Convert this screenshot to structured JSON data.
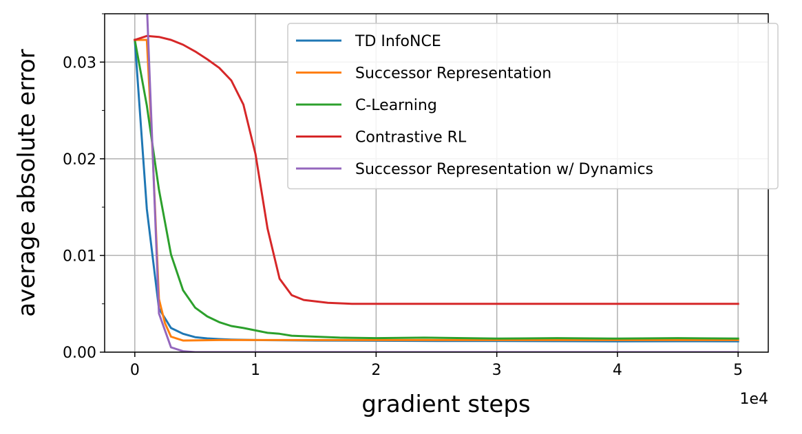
{
  "chart_data": {
    "type": "line",
    "xlabel": "gradient steps",
    "ylabel": "average absolute error",
    "x_offset_label": "1e4",
    "xlim": [
      -0.25,
      5.25
    ],
    "ylim": [
      0,
      0.035
    ],
    "xticks": [
      0,
      1,
      2,
      3,
      4,
      5
    ],
    "xtick_labels": [
      "0",
      "1",
      "2",
      "3",
      "4",
      "5"
    ],
    "yticks": [
      0,
      0.01,
      0.02,
      0.03
    ],
    "ytick_labels": [
      "0.00",
      "0.01",
      "0.02",
      "0.03"
    ],
    "grid": true,
    "legend_position": "top-right",
    "series": [
      {
        "name": "TD InfoNCE",
        "color": "#1f77b4",
        "x": [
          0,
          0.1,
          0.2,
          0.3,
          0.4,
          0.5,
          0.6,
          0.7,
          0.8,
          1.0,
          1.5,
          2.0,
          2.5,
          3.0,
          3.5,
          4.0,
          4.5,
          5.0
        ],
        "y": [
          0.0323,
          0.0148,
          0.0045,
          0.0025,
          0.0019,
          0.00155,
          0.00142,
          0.00135,
          0.0013,
          0.00125,
          0.0012,
          0.00118,
          0.00115,
          0.00115,
          0.00114,
          0.00112,
          0.00113,
          0.00112
        ]
      },
      {
        "name": "Successor Representation",
        "color": "#ff7f0e",
        "x": [
          0,
          0.1,
          0.15,
          0.2,
          0.25,
          0.3,
          0.4,
          0.5,
          0.7,
          1.0,
          1.5,
          2.0,
          2.5,
          3.0,
          3.5,
          4.0,
          4.5,
          5.0
        ],
        "y": [
          0.0323,
          0.0323,
          0.02,
          0.0055,
          0.003,
          0.0016,
          0.0012,
          0.00122,
          0.00125,
          0.00125,
          0.00125,
          0.00125,
          0.00125,
          0.00125,
          0.00125,
          0.00125,
          0.00125,
          0.00125
        ]
      },
      {
        "name": "C-Learning",
        "color": "#2ca02c",
        "x": [
          0,
          0.1,
          0.2,
          0.3,
          0.4,
          0.5,
          0.6,
          0.7,
          0.8,
          0.9,
          1.0,
          1.1,
          1.2,
          1.3,
          1.5,
          1.7,
          2.0,
          2.4,
          3.0,
          3.5,
          4.0,
          4.5,
          5.0
        ],
        "y": [
          0.0323,
          0.0255,
          0.0168,
          0.0101,
          0.0064,
          0.0046,
          0.0037,
          0.0031,
          0.0027,
          0.0025,
          0.00225,
          0.002,
          0.0019,
          0.0017,
          0.0016,
          0.0015,
          0.00145,
          0.0015,
          0.0014,
          0.00145,
          0.0014,
          0.00145,
          0.0014
        ]
      },
      {
        "name": "Contrastive RL",
        "color": "#d62728",
        "x": [
          0,
          0.1,
          0.2,
          0.3,
          0.4,
          0.5,
          0.6,
          0.7,
          0.8,
          0.9,
          1.0,
          1.1,
          1.2,
          1.3,
          1.4,
          1.6,
          1.8,
          2.0,
          2.5,
          3.0,
          3.5,
          4.0,
          4.5,
          5.0
        ],
        "y": [
          0.0323,
          0.0327,
          0.0326,
          0.0323,
          0.0318,
          0.0311,
          0.0303,
          0.0294,
          0.0281,
          0.0256,
          0.0205,
          0.0128,
          0.0076,
          0.0059,
          0.0054,
          0.0051,
          0.005,
          0.005,
          0.005,
          0.005,
          0.005,
          0.005,
          0.005,
          0.005
        ]
      },
      {
        "name": "Successor Representation w/ Dynamics",
        "color": "#9467bd",
        "x": [
          0.1,
          0.2,
          0.3,
          0.4,
          0.5,
          1.0,
          1.5,
          2.0,
          3.0,
          4.0,
          5.0
        ],
        "y": [
          0.036,
          0.004,
          0.0005,
          0.0001,
          0.0,
          0.0,
          0.0,
          0.0,
          0.0,
          0.0,
          0.0
        ]
      }
    ]
  }
}
